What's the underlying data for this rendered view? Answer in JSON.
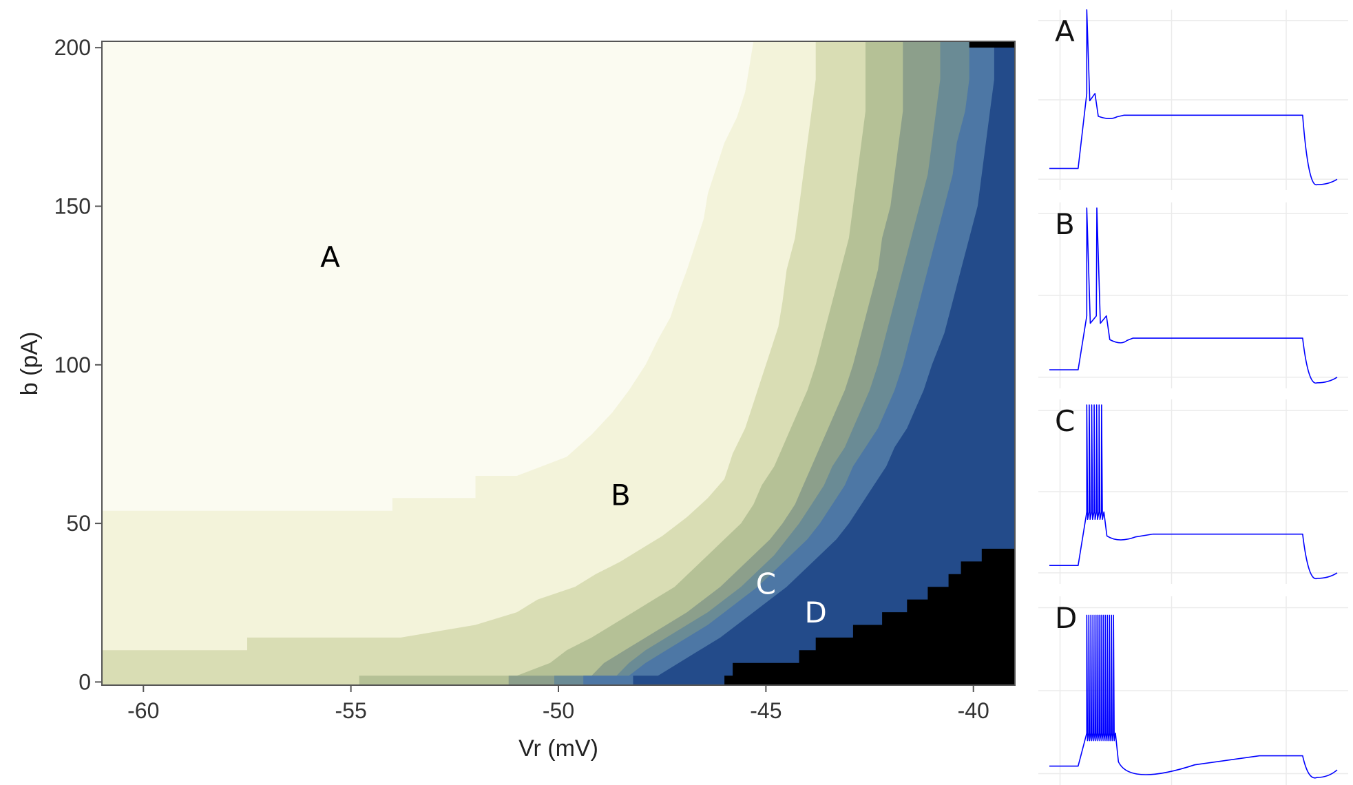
{
  "chart_data": [
    {
      "type": "heatmap",
      "xlabel": "Vr (mV)",
      "ylabel": "b (pA)",
      "xlim": [
        -61,
        -39
      ],
      "ylim": [
        -1,
        202
      ],
      "x_ticks": [
        -60,
        -55,
        -50,
        -45,
        -40
      ],
      "y_ticks": [
        0,
        50,
        100,
        150,
        200
      ],
      "grid": false,
      "colors": {
        "A": "#fbfbf1",
        "B": "#f3f3da",
        "l2": "#d9ddb4",
        "l3": "#b5c196",
        "l4": "#8c9f8b",
        "l5": "#6a8b95",
        "l6": "#4d77a5",
        "D": "#234b8a",
        "silent": "#000000"
      },
      "boundaries": [
        {
          "name": "A|B",
          "points": [
            [
              -61,
              54
            ],
            [
              -54.0,
              54
            ],
            [
              -54.0,
              58
            ],
            [
              -52.0,
              58
            ],
            [
              -52.0,
              65
            ],
            [
              -51.0,
              65
            ],
            [
              -49.8,
              71
            ],
            [
              -49.2,
              78
            ],
            [
              -48.7,
              85
            ],
            [
              -48.3,
              92
            ],
            [
              -47.9,
              100
            ],
            [
              -47.6,
              108
            ],
            [
              -47.3,
              115
            ],
            [
              -47.1,
              123
            ],
            [
              -46.9,
              130
            ],
            [
              -46.7,
              138
            ],
            [
              -46.5,
              146
            ],
            [
              -46.4,
              154
            ],
            [
              -46.2,
              162
            ],
            [
              -46.0,
              170
            ],
            [
              -45.7,
              178
            ],
            [
              -45.5,
              186
            ],
            [
              -45.4,
              194
            ],
            [
              -45.3,
              202
            ]
          ]
        },
        {
          "name": "B|l2",
          "points": [
            [
              -61,
              10
            ],
            [
              -57.5,
              10
            ],
            [
              -57.5,
              14
            ],
            [
              -53.8,
              14
            ],
            [
              -52.0,
              18
            ],
            [
              -51.0,
              22
            ],
            [
              -50.5,
              26
            ],
            [
              -49.6,
              30
            ],
            [
              -49.1,
              34
            ],
            [
              -48.5,
              38
            ],
            [
              -48.0,
              42
            ],
            [
              -47.5,
              46
            ],
            [
              -46.9,
              52
            ],
            [
              -46.4,
              58
            ],
            [
              -46.0,
              64
            ],
            [
              -45.8,
              72
            ],
            [
              -45.5,
              80
            ],
            [
              -45.3,
              88
            ],
            [
              -45.1,
              96
            ],
            [
              -44.9,
              104
            ],
            [
              -44.7,
              112
            ],
            [
              -44.6,
              120
            ],
            [
              -44.5,
              130
            ],
            [
              -44.3,
              140
            ],
            [
              -44.2,
              150
            ],
            [
              -44.1,
              160
            ],
            [
              -44.0,
              170
            ],
            [
              -43.9,
              180
            ],
            [
              -43.8,
              190
            ],
            [
              -43.8,
              202
            ]
          ]
        },
        {
          "name": "l2|l3",
          "points": [
            [
              -61,
              -1
            ],
            [
              -54.8,
              -1
            ],
            [
              -54.8,
              2
            ],
            [
              -51.0,
              2
            ],
            [
              -50.2,
              6
            ],
            [
              -49.8,
              10
            ],
            [
              -49.2,
              14
            ],
            [
              -48.7,
              18
            ],
            [
              -48.2,
              22
            ],
            [
              -47.7,
              26
            ],
            [
              -47.2,
              30
            ],
            [
              -46.8,
              35
            ],
            [
              -46.4,
              40
            ],
            [
              -46.0,
              45
            ],
            [
              -45.6,
              50
            ],
            [
              -45.3,
              56
            ],
            [
              -45.1,
              62
            ],
            [
              -44.8,
              68
            ],
            [
              -44.6,
              74
            ],
            [
              -44.4,
              80
            ],
            [
              -44.2,
              86
            ],
            [
              -44.0,
              92
            ],
            [
              -43.8,
              100
            ],
            [
              -43.6,
              110
            ],
            [
              -43.4,
              120
            ],
            [
              -43.2,
              130
            ],
            [
              -43.0,
              140
            ],
            [
              -42.9,
              150
            ],
            [
              -42.8,
              160
            ],
            [
              -42.7,
              170
            ],
            [
              -42.6,
              180
            ],
            [
              -42.6,
              190
            ],
            [
              -42.6,
              202
            ]
          ]
        },
        {
          "name": "l3|l4",
          "points": [
            [
              -51.2,
              -1
            ],
            [
              -51.2,
              2
            ],
            [
              -49.2,
              2
            ],
            [
              -48.9,
              6
            ],
            [
              -48.4,
              10
            ],
            [
              -47.9,
              14
            ],
            [
              -47.4,
              18
            ],
            [
              -46.9,
              22
            ],
            [
              -46.5,
              26
            ],
            [
              -46.1,
              30
            ],
            [
              -45.7,
              35
            ],
            [
              -45.3,
              40
            ],
            [
              -44.9,
              45
            ],
            [
              -44.6,
              50
            ],
            [
              -44.3,
              56
            ],
            [
              -44.1,
              62
            ],
            [
              -43.9,
              68
            ],
            [
              -43.7,
              74
            ],
            [
              -43.5,
              80
            ],
            [
              -43.3,
              86
            ],
            [
              -43.1,
              92
            ],
            [
              -42.9,
              100
            ],
            [
              -42.7,
              110
            ],
            [
              -42.5,
              120
            ],
            [
              -42.3,
              130
            ],
            [
              -42.2,
              140
            ],
            [
              -42.0,
              150
            ],
            [
              -41.9,
              160
            ],
            [
              -41.8,
              170
            ],
            [
              -41.7,
              180
            ],
            [
              -41.7,
              190
            ],
            [
              -41.7,
              202
            ]
          ]
        },
        {
          "name": "l4|l5",
          "points": [
            [
              -50.1,
              -1
            ],
            [
              -50.1,
              2
            ],
            [
              -48.6,
              2
            ],
            [
              -48.3,
              6
            ],
            [
              -47.9,
              10
            ],
            [
              -47.4,
              14
            ],
            [
              -46.9,
              18
            ],
            [
              -46.4,
              22
            ],
            [
              -46.0,
              26
            ],
            [
              -45.6,
              30
            ],
            [
              -45.2,
              35
            ],
            [
              -44.8,
              40
            ],
            [
              -44.5,
              45
            ],
            [
              -44.2,
              50
            ],
            [
              -43.9,
              56
            ],
            [
              -43.6,
              62
            ],
            [
              -43.4,
              68
            ],
            [
              -43.1,
              74
            ],
            [
              -42.9,
              80
            ],
            [
              -42.7,
              86
            ],
            [
              -42.5,
              92
            ],
            [
              -42.3,
              100
            ],
            [
              -42.1,
              110
            ],
            [
              -41.9,
              120
            ],
            [
              -41.7,
              130
            ],
            [
              -41.5,
              140
            ],
            [
              -41.3,
              150
            ],
            [
              -41.1,
              160
            ],
            [
              -41.0,
              170
            ],
            [
              -40.9,
              180
            ],
            [
              -40.8,
              190
            ],
            [
              -40.8,
              202
            ]
          ]
        },
        {
          "name": "l5|l6",
          "points": [
            [
              -49.4,
              -1
            ],
            [
              -49.4,
              2
            ],
            [
              -48.3,
              2
            ],
            [
              -47.9,
              6
            ],
            [
              -47.4,
              10
            ],
            [
              -46.9,
              14
            ],
            [
              -46.4,
              18
            ],
            [
              -46.0,
              22
            ],
            [
              -45.6,
              26
            ],
            [
              -45.2,
              30
            ],
            [
              -44.8,
              35
            ],
            [
              -44.4,
              40
            ],
            [
              -44.0,
              45
            ],
            [
              -43.7,
              50
            ],
            [
              -43.4,
              56
            ],
            [
              -43.1,
              62
            ],
            [
              -42.9,
              68
            ],
            [
              -42.6,
              74
            ],
            [
              -42.3,
              80
            ],
            [
              -42.1,
              86
            ],
            [
              -41.9,
              92
            ],
            [
              -41.7,
              100
            ],
            [
              -41.5,
              110
            ],
            [
              -41.3,
              120
            ],
            [
              -41.1,
              130
            ],
            [
              -40.9,
              140
            ],
            [
              -40.7,
              150
            ],
            [
              -40.5,
              160
            ],
            [
              -40.4,
              170
            ],
            [
              -40.2,
              180
            ],
            [
              -40.1,
              190
            ],
            [
              -40.1,
              202
            ]
          ]
        },
        {
          "name": "l6|D",
          "points": [
            [
              -48.2,
              -1
            ],
            [
              -48.2,
              2
            ],
            [
              -47.6,
              2
            ],
            [
              -47.1,
              6
            ],
            [
              -46.6,
              10
            ],
            [
              -46.1,
              14
            ],
            [
              -45.7,
              18
            ],
            [
              -45.3,
              22
            ],
            [
              -44.9,
              26
            ],
            [
              -44.5,
              30
            ],
            [
              -44.1,
              35
            ],
            [
              -43.7,
              40
            ],
            [
              -43.3,
              45
            ],
            [
              -43.0,
              50
            ],
            [
              -42.7,
              56
            ],
            [
              -42.4,
              62
            ],
            [
              -42.1,
              68
            ],
            [
              -41.9,
              74
            ],
            [
              -41.6,
              80
            ],
            [
              -41.4,
              86
            ],
            [
              -41.2,
              92
            ],
            [
              -41.0,
              100
            ],
            [
              -40.7,
              110
            ],
            [
              -40.5,
              120
            ],
            [
              -40.3,
              130
            ],
            [
              -40.1,
              140
            ],
            [
              -39.9,
              150
            ],
            [
              -39.8,
              160
            ],
            [
              -39.7,
              170
            ],
            [
              -39.6,
              180
            ],
            [
              -39.5,
              190
            ],
            [
              -39.5,
              202
            ]
          ]
        },
        {
          "name": "D|silent",
          "points": [
            [
              -46.0,
              -1
            ],
            [
              -46.0,
              2
            ],
            [
              -45.8,
              2
            ],
            [
              -45.8,
              6
            ],
            [
              -44.2,
              6
            ],
            [
              -44.2,
              10
            ],
            [
              -43.8,
              10
            ],
            [
              -43.8,
              14
            ],
            [
              -42.9,
              14
            ],
            [
              -42.9,
              18
            ],
            [
              -42.2,
              18
            ],
            [
              -42.2,
              22
            ],
            [
              -41.6,
              22
            ],
            [
              -41.6,
              26
            ],
            [
              -41.1,
              26
            ],
            [
              -41.1,
              30
            ],
            [
              -40.6,
              30
            ],
            [
              -40.6,
              34
            ],
            [
              -40.3,
              34
            ],
            [
              -40.3,
              38
            ],
            [
              -39.8,
              38
            ],
            [
              -39.8,
              42
            ],
            [
              -39,
              42
            ]
          ]
        },
        {
          "name": "silent-top",
          "points": [
            [
              -40.1,
              202
            ],
            [
              -40.1,
              200
            ],
            [
              -39,
              200
            ]
          ]
        }
      ],
      "annotations": [
        {
          "text": "A",
          "x": -55.5,
          "y": 134,
          "color": "#000000"
        },
        {
          "text": "B",
          "x": -48.5,
          "y": 59,
          "color": "#000000"
        },
        {
          "text": "C",
          "x": -45.0,
          "y": 31,
          "color": "#ffffff"
        },
        {
          "text": "D",
          "x": -43.8,
          "y": 22,
          "color": "#ffffff"
        }
      ]
    },
    {
      "type": "line",
      "panels": [
        {
          "label": "A",
          "baseline": 0.12,
          "plateau": 0.415,
          "n_spikes": 1,
          "spike_top": 1.0,
          "burst_end": 0.16,
          "dip": 0.03,
          "settle": 0.05,
          "offset_min": 0.03,
          "offset_end": 0.06
        },
        {
          "label": "B",
          "baseline": 0.1,
          "plateau": 0.27,
          "n_spikes": 2,
          "spike_top": 0.97,
          "burst_end": 0.2,
          "dip": 0.04,
          "settle": 0.04,
          "offset_min": 0.03,
          "offset_end": 0.06
        },
        {
          "label": "C",
          "baseline": 0.1,
          "plateau": 0.27,
          "n_spikes": 7,
          "spike_top": 0.97,
          "burst_end": 0.19,
          "dip": 0.05,
          "settle": 0.12,
          "offset_min": 0.03,
          "offset_end": 0.06
        },
        {
          "label": "D",
          "baseline": 0.1,
          "plateau": 0.155,
          "n_spikes": 14,
          "spike_top": 0.9,
          "burst_end": 0.23,
          "dip": 0.16,
          "settle": 0.45,
          "offset_min": 0.04,
          "offset_end": 0.08
        }
      ],
      "timing": {
        "step_on": 0.1,
        "first_spike": 0.13,
        "step_off": 0.88,
        "end": 1.0
      },
      "trace_color": "#0000ff",
      "grid_color": "#ebebeb"
    }
  ]
}
